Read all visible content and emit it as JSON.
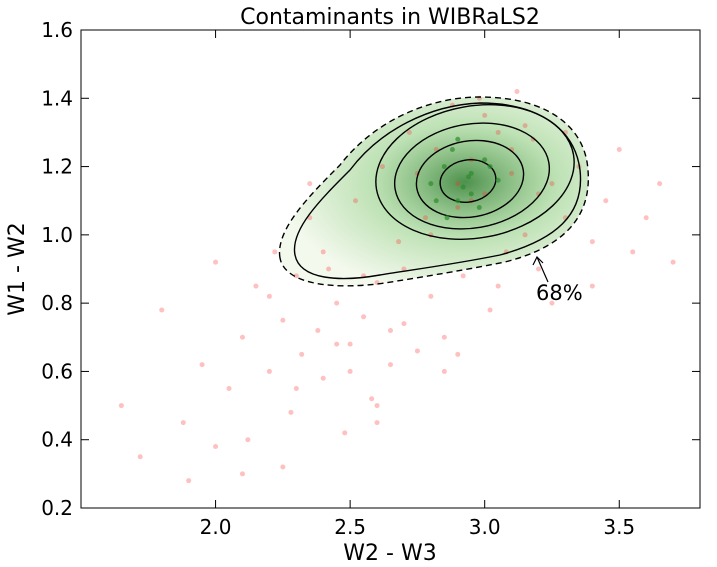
{
  "chart_data": {
    "type": "scatter",
    "title": "Contaminants in WIBRaLS2",
    "x_label": "W2 - W3",
    "y_label": "W1 - W2",
    "xlim": [
      1.5,
      3.8
    ],
    "ylim": [
      0.2,
      1.6
    ],
    "xticks": [
      {
        "value": 2.0,
        "label": "2.0"
      },
      {
        "value": 2.5,
        "label": "2.5"
      },
      {
        "value": 3.0,
        "label": "3.0"
      },
      {
        "value": 3.5,
        "label": "3.5"
      }
    ],
    "yticks": [
      0.2,
      0.4,
      0.6,
      0.8,
      {
        "value": 1.0,
        "label": "1.0"
      },
      1.2,
      1.4,
      1.6
    ],
    "annotation": "68%",
    "series": [
      {
        "color": "#ff3030",
        "x": [
          1.65,
          1.72,
          1.8,
          1.88,
          1.95,
          2.0,
          2.05,
          2.1,
          2.12,
          2.15,
          2.2,
          2.22,
          2.25,
          2.28,
          2.3,
          2.32,
          2.35,
          2.38,
          2.4,
          2.42,
          2.45,
          2.48,
          2.5,
          2.52,
          2.55,
          2.58,
          2.6,
          2.62,
          2.65,
          2.68,
          2.7,
          2.72,
          2.75,
          2.78,
          2.8,
          2.82,
          2.85,
          2.88,
          2.9,
          2.92,
          2.95,
          2.98,
          3.0,
          3.02,
          3.05,
          3.08,
          3.1,
          3.12,
          3.15,
          3.18,
          3.2,
          3.25,
          3.3,
          3.35,
          3.4,
          3.45,
          3.5,
          3.55,
          3.6,
          3.65,
          3.7,
          2.1,
          2.2,
          2.3,
          2.4,
          2.5,
          2.6,
          2.7,
          2.8,
          2.9,
          3.0,
          3.1,
          3.2,
          3.3,
          2.35,
          2.45,
          2.55,
          2.65,
          2.75,
          2.85,
          2.95,
          3.05,
          3.15,
          3.25,
          1.9,
          2.0,
          2.25,
          2.6,
          2.9,
          3.4
        ],
        "values": [
          0.5,
          0.35,
          0.78,
          0.45,
          0.62,
          0.92,
          0.55,
          0.7,
          0.4,
          0.85,
          0.6,
          0.95,
          0.75,
          0.48,
          0.88,
          0.65,
          1.05,
          0.72,
          0.58,
          0.9,
          0.8,
          0.42,
          0.68,
          1.1,
          0.76,
          0.52,
          0.86,
          1.2,
          0.62,
          0.98,
          0.74,
          1.3,
          0.66,
          1.05,
          0.82,
          1.25,
          0.7,
          1.38,
          1.15,
          0.88,
          1.22,
          1.4,
          1.12,
          0.78,
          1.3,
          0.95,
          1.18,
          1.42,
          1.0,
          1.28,
          0.9,
          1.15,
          1.05,
          1.2,
          0.98,
          1.1,
          1.25,
          0.95,
          1.05,
          1.15,
          0.92,
          0.3,
          0.82,
          0.55,
          0.95,
          0.6,
          0.45,
          0.9,
          1.0,
          1.08,
          1.35,
          1.25,
          1.12,
          1.3,
          1.15,
          0.68,
          0.88,
          0.72,
          1.18,
          0.6,
          1.1,
          0.85,
          1.32,
          0.8,
          0.28,
          0.38,
          0.32,
          0.5,
          0.65,
          0.85
        ]
      },
      {
        "color": "#2e8b2e",
        "x": [
          2.8,
          2.85,
          2.9,
          2.95,
          3.0,
          2.88,
          2.92,
          2.98,
          3.05,
          2.82,
          2.9,
          2.95,
          3.02,
          2.86,
          2.94
        ],
        "values": [
          1.15,
          1.2,
          1.1,
          1.18,
          1.22,
          1.25,
          1.14,
          1.08,
          1.16,
          1.1,
          1.28,
          1.12,
          1.2,
          1.05,
          1.17
        ]
      }
    ]
  }
}
